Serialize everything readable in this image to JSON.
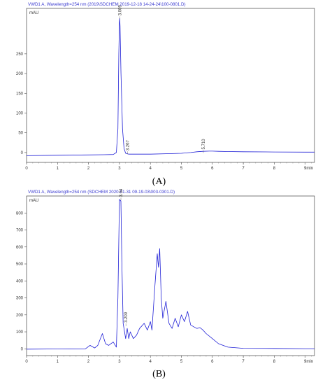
{
  "chart_data": [
    {
      "type": "line",
      "panel_tag": "(A)",
      "title": "VWD1 A, Wavelength=254 nm (2019\\SDCHEM 2019-12-18 14-24-24\\100-0801.D)",
      "ylabel": "mAU",
      "xlabel": "min",
      "xlim": [
        0,
        9.3
      ],
      "ylim": [
        -25,
        365
      ],
      "xticks": [
        0,
        1,
        2,
        3,
        4,
        5,
        6,
        7,
        8,
        9
      ],
      "yticks": [
        0,
        50,
        100,
        150,
        200,
        250
      ],
      "peak_labels": [
        {
          "x": 3.009,
          "y": 345,
          "text": "3.009"
        },
        {
          "x": 3.267,
          "y": 3,
          "text": "3.267"
        },
        {
          "x": 5.71,
          "y": 6,
          "text": "5.710"
        }
      ],
      "series": [
        {
          "color": "#1f1fd6",
          "x": [
            0,
            1,
            2,
            2.5,
            2.8,
            2.9,
            2.95,
            2.98,
            3.0,
            3.009,
            3.02,
            3.05,
            3.1,
            3.15,
            3.2,
            3.3,
            3.5,
            4.0,
            4.5,
            5.0,
            5.3,
            5.5,
            5.7,
            5.9,
            6.0,
            6.2,
            6.5,
            7.0,
            8.0,
            9.0,
            9.3
          ],
          "y": [
            -8,
            -7,
            -6,
            -5.5,
            -5,
            0,
            60,
            250,
            330,
            340,
            320,
            200,
            60,
            10,
            -2,
            -4,
            -4,
            -4,
            -3,
            -2,
            0,
            2,
            3,
            3.5,
            3.5,
            3,
            2.5,
            2,
            1.5,
            1,
            1
          ]
        }
      ]
    },
    {
      "type": "line",
      "panel_tag": "(B)",
      "title": "VWD1 A, Wavelength=254 nm (SDCHEM 2020-01-31 09-19-03\\003-0301.D)",
      "ylabel": "mAU",
      "xlabel": "min",
      "xlim": [
        0,
        9.3
      ],
      "ylim": [
        -40,
        900
      ],
      "xticks": [
        0,
        1,
        2,
        3,
        4,
        5,
        6,
        7,
        8,
        9
      ],
      "yticks": [
        0,
        100,
        200,
        300,
        400,
        500,
        600,
        700,
        800
      ],
      "peak_labels": [
        {
          "x": 3.048,
          "y": 890,
          "text": "3.048"
        },
        {
          "x": 3.209,
          "y": 150,
          "text": "3.209"
        }
      ],
      "series": [
        {
          "color": "#1f1fd6",
          "x": [
            0,
            1,
            1.9,
            2.05,
            2.2,
            2.3,
            2.45,
            2.55,
            2.65,
            2.8,
            2.9,
            2.95,
            3.0,
            3.048,
            3.08,
            3.12,
            3.2,
            3.25,
            3.3,
            3.35,
            3.45,
            3.55,
            3.65,
            3.8,
            3.9,
            4.0,
            4.05,
            4.15,
            4.22,
            4.26,
            4.3,
            4.35,
            4.4,
            4.5,
            4.6,
            4.7,
            4.8,
            4.9,
            5.0,
            5.1,
            5.2,
            5.3,
            5.4,
            5.5,
            5.6,
            5.7,
            5.8,
            6.0,
            6.2,
            6.5,
            7.0,
            8.0,
            9.0,
            9.3
          ],
          "y": [
            -2,
            -1,
            0,
            20,
            5,
            20,
            90,
            30,
            20,
            40,
            10,
            300,
            880,
            870,
            500,
            150,
            60,
            120,
            60,
            100,
            60,
            80,
            120,
            150,
            110,
            160,
            110,
            380,
            560,
            480,
            590,
            300,
            180,
            280,
            150,
            120,
            180,
            130,
            200,
            160,
            220,
            140,
            130,
            120,
            125,
            110,
            90,
            60,
            30,
            10,
            3,
            2,
            1,
            1
          ]
        }
      ]
    }
  ]
}
